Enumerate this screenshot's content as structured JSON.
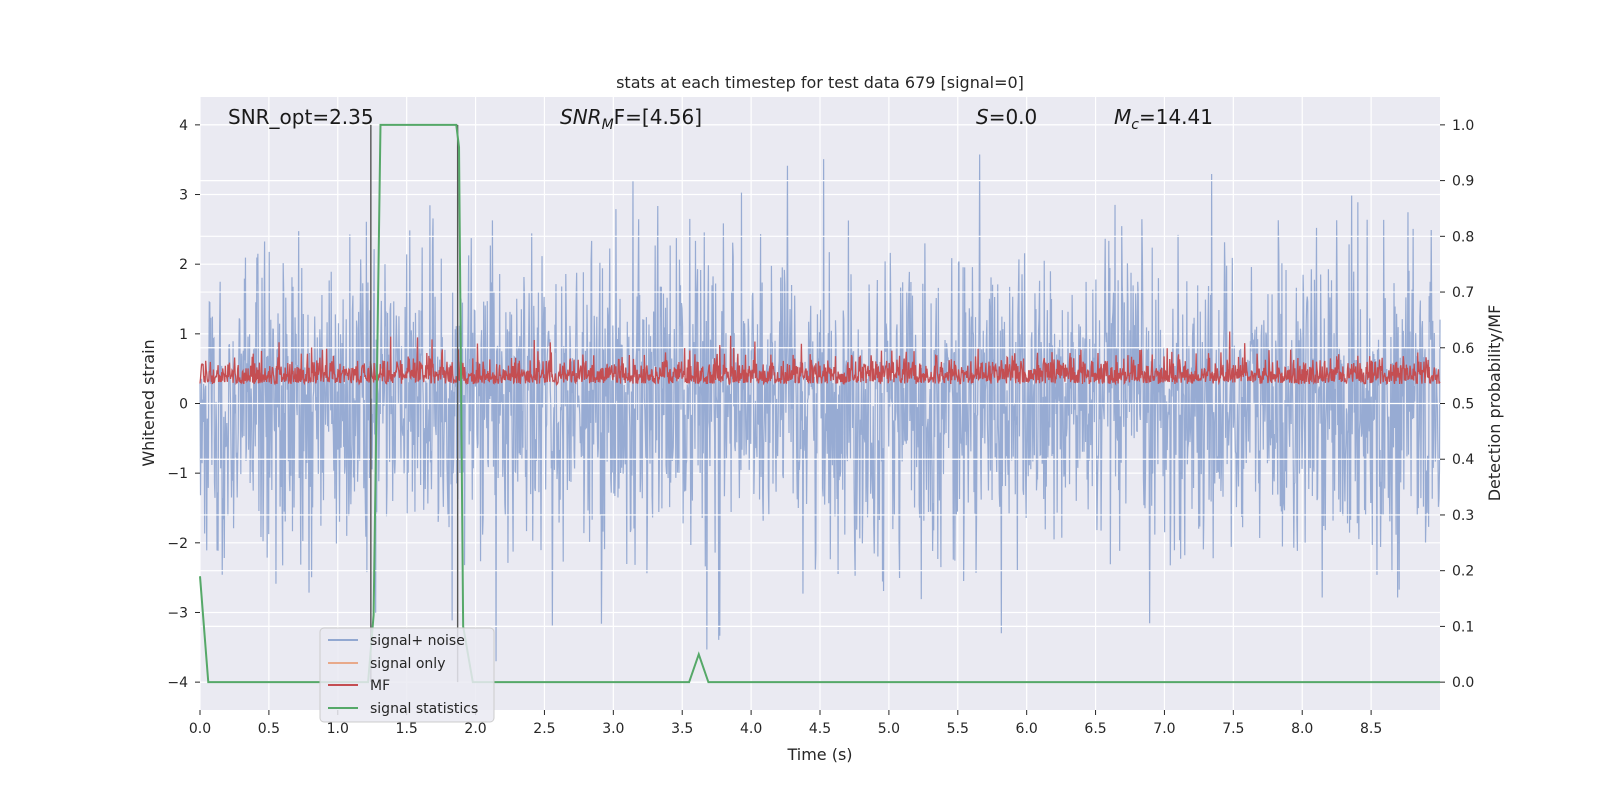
{
  "chart_data": {
    "type": "line",
    "title": "stats at each timestep for test data 679 [signal=0]",
    "xlabel": "Time (s)",
    "ylabel_left": "Whitened strain",
    "ylabel_right": "Detection probability/MF",
    "xlim": [
      0,
      9.0
    ],
    "ylim_left": [
      -4.4,
      4.4
    ],
    "ylim_right": [
      -0.05,
      1.05
    ],
    "x_ticks": [
      "0.0",
      "0.5",
      "1.0",
      "1.5",
      "2.0",
      "2.5",
      "3.0",
      "3.5",
      "4.0",
      "4.5",
      "5.0",
      "5.5",
      "6.0",
      "6.5",
      "7.0",
      "7.5",
      "8.0",
      "8.5"
    ],
    "y_ticks_left": [
      "4",
      "3",
      "2",
      "1",
      "0",
      "−1",
      "−2",
      "−3",
      "−4"
    ],
    "y_ticks_right": [
      "1.0",
      "0.9",
      "0.8",
      "0.7",
      "0.6",
      "0.5",
      "0.4",
      "0.3",
      "0.2",
      "0.1",
      "0.0"
    ],
    "grid": true,
    "legend_position": "lower-left",
    "annotations": {
      "snr_opt": "SNR_opt=2.35",
      "snr_mf_base": "SNR",
      "snr_mf_sub": "M",
      "snr_mf_rest": "F=[4.56]",
      "s_var": "S",
      "s_rest": "=0.0",
      "mc_var": "M",
      "mc_sub": "c",
      "mc_rest": "=14.41"
    },
    "series": [
      {
        "name": "signal+ noise",
        "color": "#92a8d1",
        "axis": "left",
        "description_values": "noise, approx. range -3.7 to 3.9"
      },
      {
        "name": "signal only",
        "color": "#e8a98a",
        "axis": "left",
        "values": []
      },
      {
        "name": "MF",
        "color": "#c44e52",
        "axis": "right"
      },
      {
        "name": "signal statistics",
        "color": "#55a868",
        "axis": "right",
        "x": [
          0.0,
          0.06,
          0.12,
          1.22,
          1.26,
          1.31,
          1.33,
          1.86,
          1.88,
          1.91,
          1.98,
          2.0,
          3.55,
          3.62,
          3.69,
          3.75,
          9.0
        ],
        "y": [
          0.19,
          0.0,
          0.0,
          0.0,
          0.12,
          1.0,
          1.0,
          1.0,
          0.96,
          0.1,
          0.0,
          0.0,
          0.0,
          0.05,
          0.0,
          0.0,
          0.0
        ]
      }
    ],
    "vertical_markers_x": [
      1.24,
      1.87
    ]
  }
}
